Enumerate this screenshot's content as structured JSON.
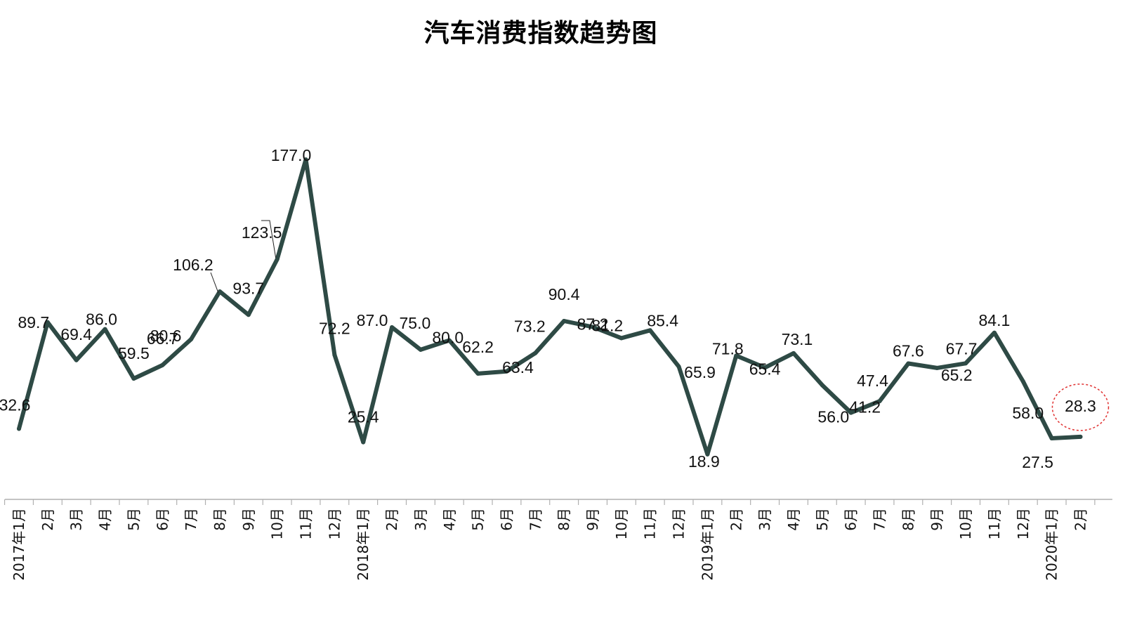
{
  "chart_data": {
    "type": "line",
    "title": "汽车消费指数趋势图",
    "xlabel": "",
    "ylabel": "",
    "ylim": [
      0,
      200
    ],
    "grid": false,
    "legend": "none",
    "categories": [
      "2017年1月",
      "2月",
      "3月",
      "4月",
      "5月",
      "6月",
      "7月",
      "8月",
      "9月",
      "10月",
      "11月",
      "12月",
      "2018年1月",
      "2月",
      "3月",
      "4月",
      "5月",
      "6月",
      "7月",
      "8月",
      "9月",
      "10月",
      "11月",
      "12月",
      "2019年1月",
      "2月",
      "3月",
      "4月",
      "5月",
      "6月",
      "7月",
      "8月",
      "9月",
      "10月",
      "11月",
      "12月",
      "2020年1月",
      "2月"
    ],
    "series": [
      {
        "values": [
          32.6,
          89.7,
          69.4,
          86.0,
          59.5,
          66.7,
          80.6,
          106.2,
          93.7,
          123.5,
          177.0,
          72.2,
          25.4,
          87.0,
          75.0,
          80.0,
          62.2,
          63.4,
          73.2,
          90.4,
          87.2,
          81.2,
          85.4,
          65.9,
          18.9,
          71.8,
          65.4,
          73.1,
          56.0,
          41.2,
          47.4,
          67.6,
          65.2,
          67.7,
          84.1,
          58.0,
          27.5,
          28.3
        ],
        "labels": [
          "32.6",
          "89.7",
          "69.4",
          "86.0",
          "59.5",
          "66.7",
          "80.6",
          "106.2",
          "93.7",
          "123.5",
          "177.0",
          "72.2",
          "25.4",
          "87.0",
          "75.0",
          "80.0",
          "62.2",
          "63.4",
          "73.2",
          "90.4",
          "87.2",
          "81.2",
          "85.4",
          "65.9",
          "18.9",
          "71.8",
          "65.4",
          "73.1",
          "56.0",
          "41.2",
          "47.4",
          "67.6",
          "65.2",
          "67.7",
          "84.1",
          "58.0",
          "27.5",
          "28.3"
        ]
      }
    ],
    "highlight_index": 37,
    "colors": {
      "line": "#2e4a45",
      "axis": "#b0b0b0",
      "highlight": "#e03030"
    }
  }
}
